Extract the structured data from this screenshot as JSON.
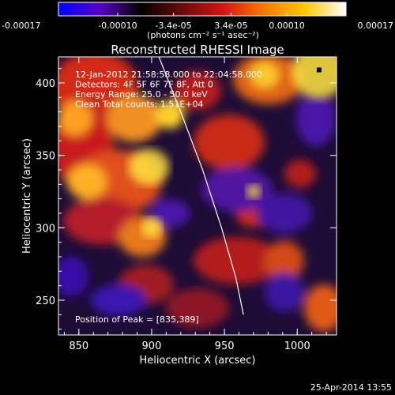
{
  "chart_data": {
    "type": "heatmap",
    "title": "Reconstructed RHESSI Image",
    "xlabel": "Heliocentric X (arcsec)",
    "ylabel": "Heliocentric Y (arcsec)",
    "xlim": [
      836,
      1027
    ],
    "ylim": [
      226,
      418
    ],
    "x_ticks": [
      {
        "value": 850,
        "label": "850"
      },
      {
        "value": 900,
        "label": "900"
      },
      {
        "value": 950,
        "label": "950"
      },
      {
        "value": 1000,
        "label": "1000"
      }
    ],
    "y_ticks": [
      {
        "value": 250,
        "label": "250"
      },
      {
        "value": 300,
        "label": "300"
      },
      {
        "value": 350,
        "label": "350"
      },
      {
        "value": 400,
        "label": "400"
      }
    ],
    "colorbar": {
      "range": [
        -0.00017,
        0.00017
      ],
      "ticks": [
        {
          "value": -0.00017,
          "label": "-0.00017"
        },
        {
          "value": -0.0001,
          "label": "-0.00010"
        },
        {
          "value": -3.4e-05,
          "label": "-3.4e-05"
        },
        {
          "value": 3.4e-05,
          "label": "3.4e-05"
        },
        {
          "value": 0.0001,
          "label": "0.00010"
        },
        {
          "value": 0.00017,
          "label": "0.00017"
        }
      ],
      "unit_label": "(photons cm⁻² s⁻¹ asec⁻²)",
      "colors": [
        "#0000ff",
        "#5a00c8",
        "#000000",
        "#6a0a0a",
        "#d21414",
        "#ff7800",
        "#ffc800",
        "#ffffff"
      ]
    },
    "info_lines": [
      "12-Jan-2012 21:58:58.000 to 22:04:58.000",
      "Detectors: 4F 5F 6F 7F 8F, Att 0",
      "Energy Range: 25.0 - 50.0 keV",
      "Clean    Total counts: 1.51E+04"
    ],
    "peak_label": "Position of Peak = [835,389]",
    "limb_curve": [
      [
        905,
        418
      ],
      [
        920,
        380
      ],
      [
        935,
        340
      ],
      [
        948,
        300
      ],
      [
        958,
        265
      ],
      [
        963,
        240
      ]
    ],
    "bright_spots": [
      {
        "x": 898,
        "y": 342,
        "w": 28,
        "h": 25
      },
      {
        "x": 1015,
        "y": 408,
        "w": 38,
        "h": 38
      },
      {
        "x": 900,
        "y": 300,
        "w": 14,
        "h": 14
      },
      {
        "x": 970,
        "y": 325,
        "w": 10,
        "h": 10
      }
    ],
    "timestamp": "25-Apr-2014 13:55"
  }
}
